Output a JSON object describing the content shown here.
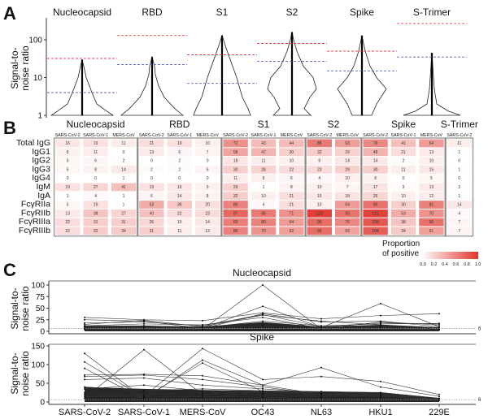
{
  "panels": {
    "a": "A",
    "b": "B",
    "c": "C"
  },
  "chart_data": [
    {
      "type": "violin",
      "panel": "A",
      "ylabel": [
        "Signal-to-",
        "noise ratio"
      ],
      "y_scale": "log",
      "yticks": [
        "1",
        "10",
        "100"
      ],
      "ytick_values": [
        1,
        10,
        100
      ],
      "categories": [
        "Nucleocapsid",
        "RBD",
        "S1",
        "S2",
        "Spike",
        "S-Trimer"
      ],
      "max_values": [
        30,
        35,
        130,
        160,
        130,
        45
      ],
      "red_threshold": [
        32,
        130,
        40,
        80,
        50,
        270
      ],
      "blue_threshold": [
        4,
        22,
        7,
        27,
        15,
        35
      ],
      "colors": {
        "red_line": "#e8404a",
        "blue_line": "#5566b8",
        "outline": "#222222"
      }
    },
    {
      "type": "heatmap",
      "panel": "B",
      "groups": [
        {
          "name": "Nucleocapsid",
          "columns": [
            "SARS-CoV-2",
            "SARS-CoV-1",
            "MERS-CoV"
          ]
        },
        {
          "name": "RBD",
          "columns": [
            "SARS-CoV-2",
            "SARS-CoV-1",
            "MERS-CoV"
          ]
        },
        {
          "name": "S1",
          "columns": [
            "SARS-CoV-2",
            "SARS-CoV-1",
            "MERS-CoV"
          ]
        },
        {
          "name": "S2",
          "columns": [
            "SARS-CoV-2",
            "MERS-CoV"
          ]
        },
        {
          "name": "Spike",
          "columns": [
            "SARS-CoV-2",
            "SARS-CoV-1",
            "MERS-CoV"
          ]
        },
        {
          "name": "S-Trimer",
          "columns": [
            "SARS-CoV-2"
          ]
        }
      ],
      "rows": [
        "Total IgG",
        "IgG1",
        "IgG2",
        "IgG3",
        "IgG4",
        "IgM",
        "IgA",
        "FcγRIIa",
        "FcγRIIb",
        "FcγRIIIa",
        "FcγRIIIb"
      ],
      "values": [
        [
          16,
          19,
          11,
          21,
          19,
          10,
          72,
          43,
          44,
          86,
          63,
          76,
          41,
          64,
          11
        ],
        [
          8,
          11,
          0,
          13,
          6,
          7,
          58,
          47,
          30,
          32,
          29,
          48,
          21,
          13,
          1
        ],
        [
          5,
          6,
          2,
          0,
          2,
          0,
          18,
          11,
          10,
          9,
          14,
          14,
          2,
          10,
          0
        ],
        [
          5,
          8,
          14,
          2,
          2,
          6,
          30,
          28,
          22,
          23,
          29,
          30,
          11,
          15,
          1
        ],
        [
          0,
          0,
          1,
          0,
          0,
          0,
          11,
          9,
          6,
          4,
          10,
          8,
          0,
          5,
          0
        ],
        [
          19,
          27,
          41,
          19,
          16,
          9,
          29,
          1,
          8,
          10,
          7,
          17,
          3,
          13,
          2
        ],
        [
          1,
          4,
          1,
          6,
          14,
          8,
          32,
          10,
          21,
          15,
          18,
          26,
          10,
          12,
          1
        ],
        [
          5,
          19,
          1,
          53,
          36,
          20,
          80,
          4,
          21,
          10,
          64,
          90,
          30,
          81,
          14
        ],
        [
          13,
          38,
          27,
          40,
          22,
          23,
          97,
          85,
          71,
          123,
          90,
          121,
          53,
          70,
          4
        ],
        [
          22,
          31,
          31,
          26,
          10,
          14,
          83,
          80,
          64,
          95,
          76,
          108,
          38,
          90,
          7
        ],
        [
          22,
          32,
          34,
          31,
          11,
          13,
          80,
          70,
          62,
          95,
          59,
          104,
          34,
          61,
          7
        ]
      ],
      "legend": {
        "title": [
          "Proportion",
          "of positive"
        ],
        "ticks": [
          "0.0",
          "0.2",
          "0.4",
          "0.6",
          "0.8",
          "1.0"
        ],
        "range": [
          0,
          1
        ],
        "low_color": "#ffffff",
        "high_color": "#e0352c"
      }
    },
    {
      "type": "line",
      "panel": "C",
      "ylabel": [
        "Signal-to-",
        "noise ratio"
      ],
      "x": [
        "SARS-CoV-2",
        "SARS-CoV-1",
        "MERS-CoV",
        "OC43",
        "NL63",
        "HKU1",
        "229E"
      ],
      "cutoff": 6,
      "cutoff_label": "6",
      "subplots": [
        {
          "title": "Nucleocapsid",
          "ylim": [
            0,
            105
          ],
          "yticks": [
            "0",
            "25",
            "50",
            "75",
            "100"
          ],
          "ytick_values": [
            0,
            25,
            50,
            75,
            100
          ],
          "series": [
            [
              5,
              6,
              4,
              100,
              5,
              6,
              4
            ],
            [
              8,
              10,
              6,
              54,
              8,
              60,
              10
            ],
            [
              30,
              25,
              23,
              40,
              27,
              34,
              38
            ],
            [
              25,
              22,
              6,
              38,
              20,
              22,
              10
            ],
            [
              18,
              20,
              12,
              36,
              10,
              18,
              16
            ],
            [
              15,
              24,
              10,
              35,
              22,
              14,
              8
            ],
            [
              12,
              16,
              14,
              30,
              6,
              20,
              14
            ],
            [
              10,
              12,
              8,
              22,
              12,
              16,
              17
            ],
            [
              6,
              8,
              5,
              18,
              8,
              10,
              6
            ],
            [
              4,
              5,
              3,
              12,
              4,
              6,
              3
            ]
          ]
        },
        {
          "title": "Spike",
          "ylim": [
            0,
            155
          ],
          "yticks": [
            "0",
            "50",
            "100",
            "150"
          ],
          "ytick_values": [
            0,
            50,
            100,
            150
          ],
          "series": [
            [
              130,
              10,
              8,
              30,
              25,
              20,
              8
            ],
            [
              107,
              12,
              104,
              28,
              20,
              18,
              6
            ],
            [
              90,
              8,
              112,
              45,
              20,
              22,
              8
            ],
            [
              10,
              140,
              20,
              30,
              20,
              15,
              6
            ],
            [
              20,
              15,
              143,
              60,
              68,
              55,
              20
            ],
            [
              72,
              74,
              70,
              45,
              92,
              40,
              15
            ],
            [
              68,
              72,
              60,
              40,
              20,
              25,
              10
            ],
            [
              60,
              64,
              45,
              35,
              25,
              20,
              8
            ],
            [
              40,
              30,
              35,
              30,
              28,
              25,
              10
            ],
            [
              35,
              45,
              30,
              25,
              20,
              18,
              8
            ],
            [
              25,
              20,
              25,
              20,
              15,
              15,
              5
            ],
            [
              15,
              12,
              15,
              12,
              10,
              10,
              4
            ]
          ]
        }
      ],
      "colors": {
        "line": "#333333",
        "band": "#000000"
      }
    }
  ]
}
